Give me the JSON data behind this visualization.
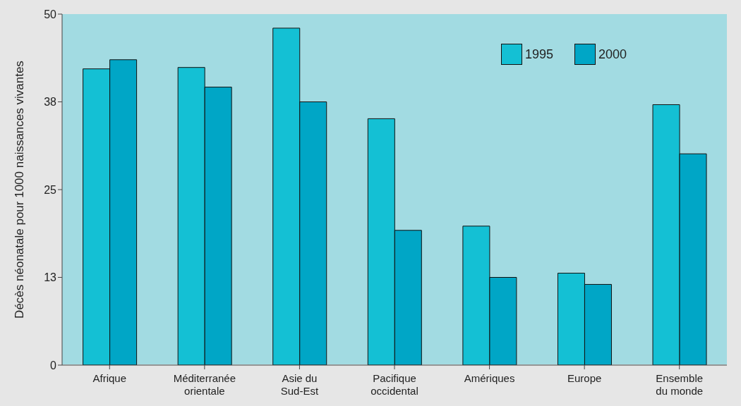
{
  "chart_data": {
    "type": "bar",
    "ylabel": "Décès néonatale pour 1000 naissances vivantes",
    "categories": [
      "Afrique",
      "Méditerranée orientale",
      "Asie du Sud-Est",
      "Pacifique occidental",
      "Amériques",
      "Europe",
      "Ensemble du monde"
    ],
    "series": [
      {
        "name": "1995",
        "color": "#14c0d4",
        "values": [
          42.2,
          42.4,
          48.0,
          35.1,
          19.8,
          13.1,
          37.1
        ]
      },
      {
        "name": "2000",
        "color": "#00a6c6",
        "values": [
          43.5,
          39.6,
          37.5,
          19.2,
          12.5,
          11.5,
          30.1
        ]
      }
    ],
    "ylim": [
      0,
      50
    ],
    "yticks": [
      0,
      {
        "value": 12.5,
        "label": "13"
      },
      25,
      {
        "value": 37.5,
        "label": "38"
      },
      50
    ],
    "legend": "top right"
  }
}
